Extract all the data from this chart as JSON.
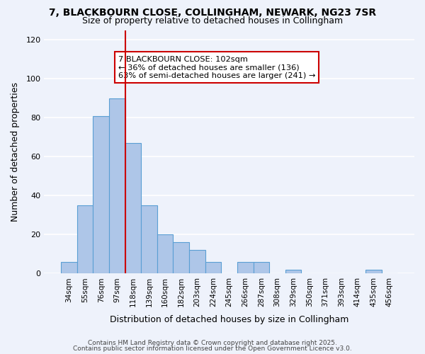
{
  "title_line1": "7, BLACKBOURN CLOSE, COLLINGHAM, NEWARK, NG23 7SR",
  "title_line2": "Size of property relative to detached houses in Collingham",
  "xlabel": "Distribution of detached houses by size in Collingham",
  "ylabel": "Number of detached properties",
  "bar_color": "#aec6e8",
  "bar_edge_color": "#5a9fd4",
  "background_color": "#eef2fb",
  "categories": [
    "34sqm",
    "55sqm",
    "76sqm",
    "97sqm",
    "118sqm",
    "139sqm",
    "160sqm",
    "182sqm",
    "203sqm",
    "224sqm",
    "245sqm",
    "266sqm",
    "287sqm",
    "308sqm",
    "329sqm",
    "350sqm",
    "371sqm",
    "393sqm",
    "414sqm",
    "435sqm",
    "456sqm"
  ],
  "values": [
    6,
    35,
    81,
    90,
    67,
    35,
    20,
    16,
    12,
    6,
    0,
    6,
    6,
    0,
    2,
    0,
    0,
    0,
    0,
    2,
    0
  ],
  "ylim": [
    0,
    125
  ],
  "yticks": [
    0,
    20,
    40,
    60,
    80,
    100,
    120
  ],
  "vline_x_index": 3.5,
  "vline_color": "#cc0000",
  "annotation_title": "7 BLACKBOURN CLOSE: 102sqm",
  "annotation_line1": "← 36% of detached houses are smaller (136)",
  "annotation_line2": "63% of semi-detached houses are larger (241) →",
  "footer1": "Contains HM Land Registry data © Crown copyright and database right 2025.",
  "footer2": "Contains public sector information licensed under the Open Government Licence v3.0."
}
